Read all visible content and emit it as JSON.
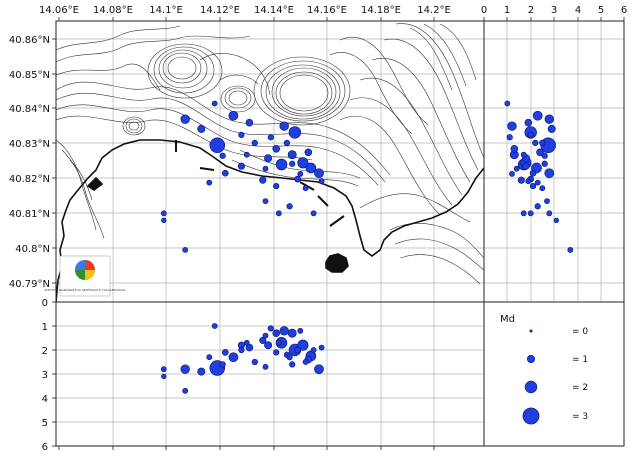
{
  "map": {
    "lon_ticks": [
      "14.06°E",
      "14.08°E",
      "14.1°E",
      "14.12°E",
      "14.14°E",
      "14.16°E",
      "14.18°E",
      "14.2°E"
    ],
    "lat_ticks": [
      "40.86°N",
      "40.85°N",
      "40.84°N",
      "40.83°N",
      "40.82°N",
      "40.81°N",
      "40.8°N",
      "40.79°N"
    ],
    "logo_caption": "ISTITUTO NAZIONALE DI GEOFISICA E VULCANOLOGIA",
    "grid": true
  },
  "right_panel": {
    "depth_ticks": [
      "0",
      "1",
      "2",
      "3",
      "4",
      "5",
      "6"
    ]
  },
  "bottom_panel": {
    "depth_ticks": [
      "0",
      "1",
      "2",
      "3",
      "4",
      "5",
      "6"
    ]
  },
  "legend": {
    "title": "Md",
    "items": [
      {
        "label": "= 0",
        "md": 0
      },
      {
        "label": "= 1",
        "md": 1
      },
      {
        "label": "= 2",
        "md": 2
      },
      {
        "label": "= 3",
        "md": 3
      }
    ]
  },
  "colors": {
    "event_fill": "#1f3fe0",
    "event_stroke": "#0a1470",
    "contour": "#333333",
    "grid": "#b5b5b5"
  },
  "events": [
    {
      "lon": 14.119,
      "lat": 40.8295,
      "depth": 2.75,
      "md": 2.7
    },
    {
      "lon": 14.148,
      "lat": 40.8332,
      "depth": 2.0,
      "md": 2.0
    },
    {
      "lon": 14.143,
      "lat": 40.824,
      "depth": 1.7,
      "md": 1.8
    },
    {
      "lon": 14.151,
      "lat": 40.8245,
      "depth": 1.8,
      "md": 1.7
    },
    {
      "lon": 14.154,
      "lat": 40.823,
      "depth": 2.25,
      "md": 1.6
    },
    {
      "lon": 14.125,
      "lat": 40.838,
      "depth": 2.3,
      "md": 1.4
    },
    {
      "lon": 14.144,
      "lat": 40.835,
      "depth": 1.2,
      "md": 1.3
    },
    {
      "lon": 14.157,
      "lat": 40.8215,
      "depth": 2.8,
      "md": 1.4
    },
    {
      "lon": 14.147,
      "lat": 40.8268,
      "depth": 1.3,
      "md": 1.2
    },
    {
      "lon": 14.107,
      "lat": 40.837,
      "depth": 2.8,
      "md": 1.3
    },
    {
      "lon": 14.138,
      "lat": 40.8258,
      "depth": 1.8,
      "md": 1.0
    },
    {
      "lon": 14.141,
      "lat": 40.8285,
      "depth": 1.3,
      "md": 0.9
    },
    {
      "lon": 14.153,
      "lat": 40.8275,
      "depth": 2.4,
      "md": 0.9
    },
    {
      "lon": 14.131,
      "lat": 40.836,
      "depth": 1.9,
      "md": 0.9
    },
    {
      "lon": 14.113,
      "lat": 40.8342,
      "depth": 2.9,
      "md": 1.0
    },
    {
      "lon": 14.128,
      "lat": 40.8235,
      "depth": 1.8,
      "md": 0.8
    },
    {
      "lon": 14.122,
      "lat": 40.8215,
      "depth": 2.1,
      "md": 0.7
    },
    {
      "lon": 14.136,
      "lat": 40.8195,
      "depth": 1.6,
      "md": 0.8
    },
    {
      "lon": 14.149,
      "lat": 40.8198,
      "depth": 2.0,
      "md": 0.7
    },
    {
      "lon": 14.145,
      "lat": 40.8302,
      "depth": 2.2,
      "md": 0.6
    },
    {
      "lon": 14.139,
      "lat": 40.8318,
      "depth": 1.1,
      "md": 0.6
    },
    {
      "lon": 14.133,
      "lat": 40.8302,
      "depth": 2.5,
      "md": 0.6
    },
    {
      "lon": 14.118,
      "lat": 40.8415,
      "depth": 1.0,
      "md": 0.5
    },
    {
      "lon": 14.121,
      "lat": 40.8265,
      "depth": 2.6,
      "md": 0.6
    },
    {
      "lon": 14.116,
      "lat": 40.8188,
      "depth": 2.3,
      "md": 0.5
    },
    {
      "lon": 14.141,
      "lat": 40.8178,
      "depth": 2.1,
      "md": 0.6
    },
    {
      "lon": 14.158,
      "lat": 40.8192,
      "depth": 1.9,
      "md": 0.5
    },
    {
      "lon": 14.152,
      "lat": 40.8172,
      "depth": 2.5,
      "md": 0.5
    },
    {
      "lon": 14.128,
      "lat": 40.8325,
      "depth": 2.0,
      "md": 0.6
    },
    {
      "lon": 14.137,
      "lat": 40.8228,
      "depth": 1.4,
      "md": 0.5
    },
    {
      "lon": 14.15,
      "lat": 40.8213,
      "depth": 1.2,
      "md": 0.5
    },
    {
      "lon": 14.146,
      "lat": 40.812,
      "depth": 2.3,
      "md": 0.6
    },
    {
      "lon": 14.142,
      "lat": 40.81,
      "depth": 1.7,
      "md": 0.5
    },
    {
      "lon": 14.137,
      "lat": 40.8135,
      "depth": 2.7,
      "md": 0.5
    },
    {
      "lon": 14.099,
      "lat": 40.81,
      "depth": 2.8,
      "md": 0.5
    },
    {
      "lon": 14.099,
      "lat": 40.808,
      "depth": 3.1,
      "md": 0.4
    },
    {
      "lon": 14.107,
      "lat": 40.7995,
      "depth": 3.7,
      "md": 0.5
    },
    {
      "lon": 14.155,
      "lat": 40.81,
      "depth": 2.0,
      "md": 0.5
    },
    {
      "lon": 14.147,
      "lat": 40.8242,
      "depth": 2.6,
      "md": 0.6
    },
    {
      "lon": 14.13,
      "lat": 40.8268,
      "depth": 1.7,
      "md": 0.5
    }
  ]
}
